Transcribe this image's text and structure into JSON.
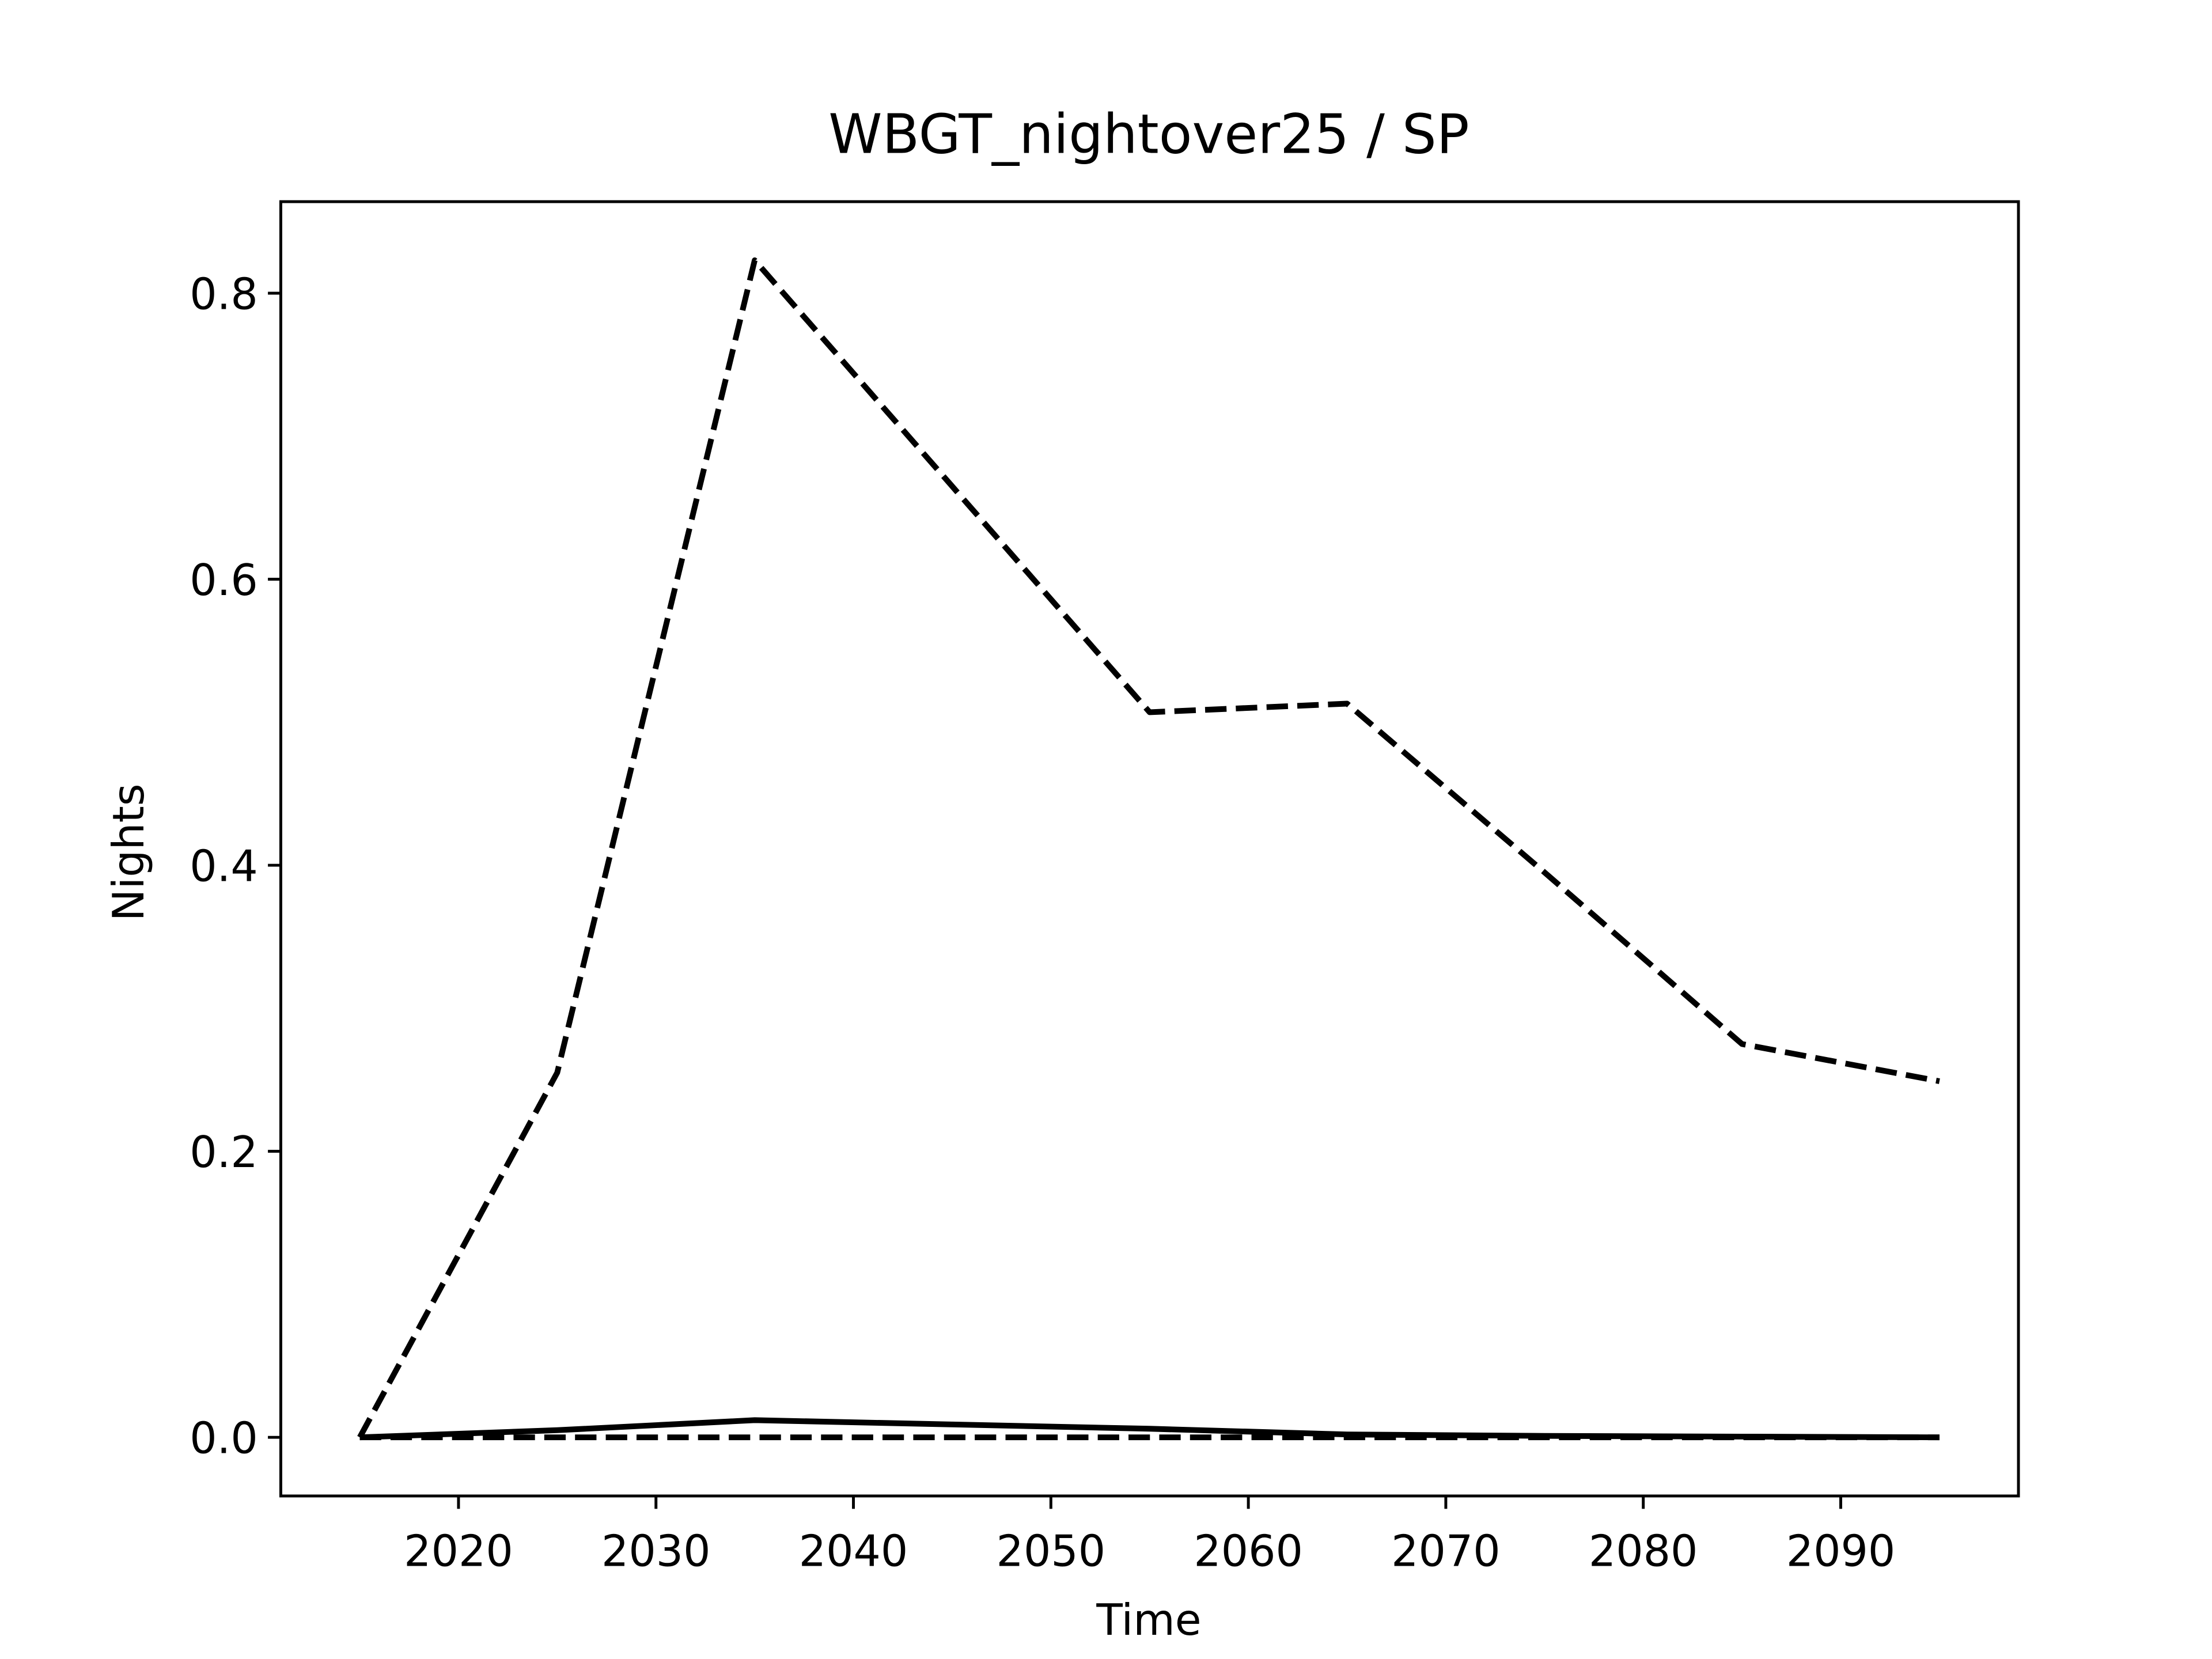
{
  "chart_data": {
    "type": "line",
    "title": "WBGT_nightover25 / SP",
    "xlabel": "Time",
    "ylabel": "Nights",
    "x": [
      2015,
      2025,
      2035,
      2045,
      2055,
      2065,
      2075,
      2085,
      2095
    ],
    "series": [
      {
        "color": "#000000",
        "style": "dashed",
        "values": [
          0,
          0.255,
          0.823,
          0.665,
          0.507,
          0.513,
          0.395,
          0.275,
          0.249
        ]
      },
      {
        "color": "#000000",
        "style": "dashed",
        "values": [
          0,
          0,
          0,
          0,
          0,
          0,
          0,
          0,
          0
        ]
      },
      {
        "color": "#000000",
        "style": "solid",
        "values": [
          0,
          0.005,
          0.012,
          0.009,
          0.006,
          0.002,
          0.001,
          0.0005,
          0
        ]
      }
    ],
    "xlim": [
      2011,
      2099
    ],
    "ylim": [
      -0.041,
      0.864
    ],
    "xticks": [
      2020,
      2030,
      2040,
      2050,
      2060,
      2070,
      2080,
      2090
    ],
    "yticks": [
      {
        "value": 0,
        "label": "0.0"
      },
      0.2,
      0.4,
      0.6,
      0.8
    ]
  }
}
